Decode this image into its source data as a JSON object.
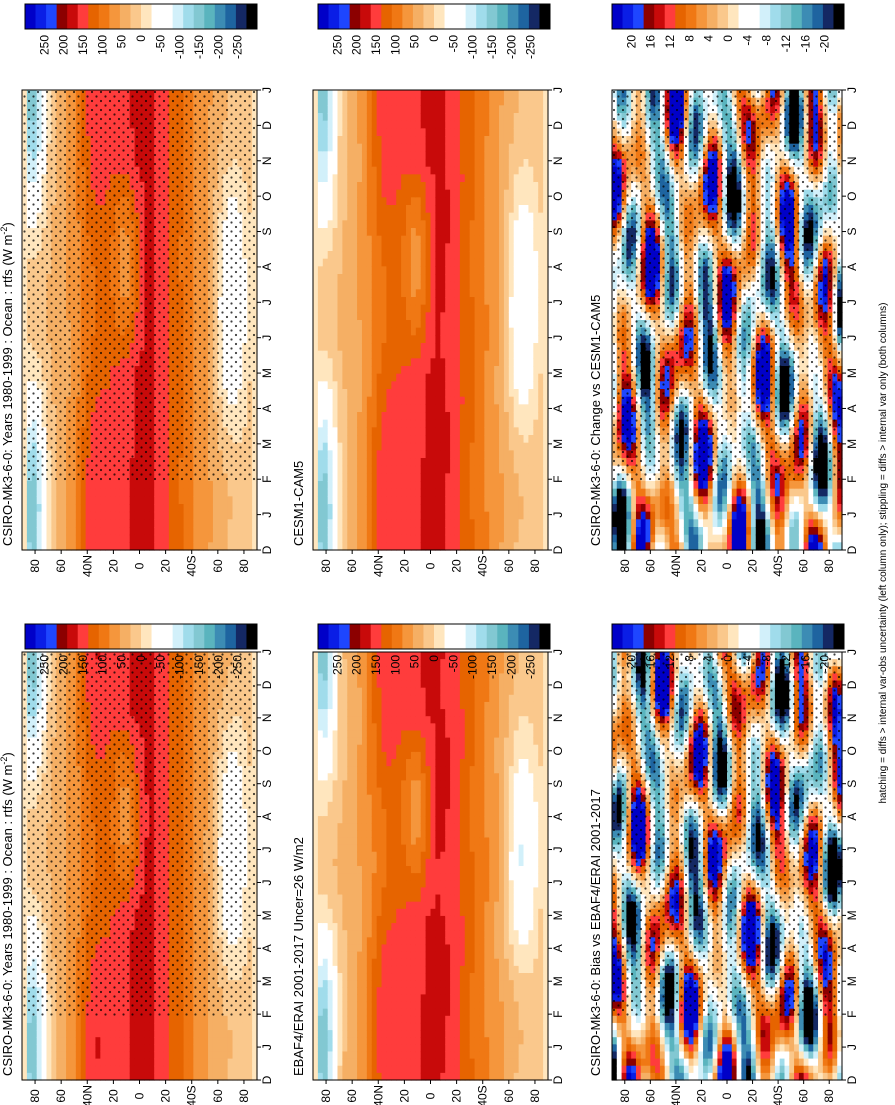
{
  "figure": {
    "footnote": "hatching = diffs > internal var-obs uncertainty (left column only); stippling = diffs > internal var only (both columns)",
    "orientation": "rotated 90 degrees clockwise"
  },
  "chart_data": [
    {
      "type": "heatmap",
      "id": "p11",
      "title": "CSIRO-Mk3-6-0: Years 1980-1999 : Ocean : rtfs (W m",
      "title_sup": "-2",
      "title_close": ")",
      "x_ticks": [
        "D",
        "J",
        "F",
        "M",
        "A",
        "M",
        "J",
        "J",
        "A",
        "S",
        "O",
        "N",
        "D",
        "J"
      ],
      "y_ticks": [
        "80",
        "60",
        "40N",
        "20",
        "0",
        "20",
        "40S",
        "60",
        "80"
      ],
      "stipple": true,
      "colorbar_labels": [
        "250",
        "200",
        "150",
        "100",
        "50",
        "0",
        "-50",
        "-100",
        "-150",
        "-200",
        "-250"
      ],
      "field": "absolute",
      "range": [
        -250,
        250
      ]
    },
    {
      "type": "heatmap",
      "id": "p12",
      "title": "CSIRO-Mk3-6-0: Years 1980-1999 : Ocean : rtfs (W m",
      "title_sup": "-2",
      "title_close": ")",
      "x_ticks": [
        "D",
        "J",
        "F",
        "M",
        "A",
        "M",
        "J",
        "J",
        "A",
        "S",
        "O",
        "N",
        "D",
        "J"
      ],
      "y_ticks": [
        "80",
        "60",
        "40N",
        "20",
        "0",
        "20",
        "40S",
        "60",
        "80"
      ],
      "stipple": true,
      "colorbar_labels": [
        "250",
        "200",
        "150",
        "100",
        "50",
        "0",
        "-50",
        "-100",
        "-150",
        "-200",
        "-250"
      ],
      "field": "absolute",
      "range": [
        -250,
        250
      ]
    },
    {
      "type": "heatmap",
      "id": "p21",
      "title": "EBAF4/ERAI 2001-2017 Uncer=26 W/m2",
      "title_sup": "",
      "title_close": "",
      "x_ticks": [
        "D",
        "J",
        "F",
        "M",
        "A",
        "M",
        "J",
        "J",
        "A",
        "S",
        "O",
        "N",
        "D",
        "J"
      ],
      "y_ticks": [
        "80",
        "60",
        "40N",
        "20",
        "0",
        "20",
        "40S",
        "60",
        "80"
      ],
      "stipple": false,
      "colorbar_labels": [
        "250",
        "200",
        "150",
        "100",
        "50",
        "0",
        "-50",
        "-100",
        "-150",
        "-200",
        "-250"
      ],
      "field": "absolute",
      "range": [
        -250,
        250
      ]
    },
    {
      "type": "heatmap",
      "id": "p22",
      "title": "CESM1-CAM5",
      "title_sup": "",
      "title_close": "",
      "x_ticks": [
        "D",
        "J",
        "F",
        "M",
        "A",
        "M",
        "J",
        "J",
        "A",
        "S",
        "O",
        "N",
        "D",
        "J"
      ],
      "y_ticks": [
        "80",
        "60",
        "40N",
        "20",
        "0",
        "20",
        "40S",
        "60",
        "80"
      ],
      "stipple": false,
      "colorbar_labels": [
        "250",
        "200",
        "150",
        "100",
        "50",
        "0",
        "-50",
        "-100",
        "-150",
        "-200",
        "-250"
      ],
      "field": "absolute",
      "range": [
        -250,
        250
      ]
    },
    {
      "type": "heatmap",
      "id": "p31",
      "title": "CSIRO-Mk3-6-0: Bias vs EBAF4/ERAI 2001-2017",
      "title_sup": "",
      "title_close": "",
      "x_ticks": [
        "D",
        "J",
        "F",
        "M",
        "A",
        "M",
        "J",
        "J",
        "A",
        "S",
        "O",
        "N",
        "D",
        "J"
      ],
      "y_ticks": [
        "80",
        "60",
        "40N",
        "20",
        "0",
        "20",
        "40S",
        "60",
        "80"
      ],
      "stipple": true,
      "colorbar_labels": [
        "20",
        "16",
        "12",
        "8",
        "4",
        "0",
        "-4",
        "-8",
        "-12",
        "-16",
        "-20"
      ],
      "field": "difference",
      "range": [
        -20,
        20
      ]
    },
    {
      "type": "heatmap",
      "id": "p32",
      "title": "CSIRO-Mk3-6-0: Change vs CESM1-CAM5",
      "title_sup": "",
      "title_close": "",
      "x_ticks": [
        "D",
        "J",
        "F",
        "M",
        "A",
        "M",
        "J",
        "J",
        "A",
        "S",
        "O",
        "N",
        "D",
        "J"
      ],
      "y_ticks": [
        "80",
        "60",
        "40N",
        "20",
        "0",
        "20",
        "40S",
        "60",
        "80"
      ],
      "stipple": true,
      "colorbar_labels": [
        "20",
        "16",
        "12",
        "8",
        "4",
        "0",
        "-4",
        "-8",
        "-12",
        "-16",
        "-20"
      ],
      "field": "difference",
      "range": [
        -20,
        20
      ]
    }
  ],
  "colors": {
    "absolute": [
      "#0000c8",
      "#0a1ee6",
      "#1e46ff",
      "#8c0000",
      "#c80a0a",
      "#ff3c3c",
      "#e66400",
      "#f07814",
      "#f5963c",
      "#f5af64",
      "#fac88c",
      "#ffe6be",
      "#ffffff",
      "#ffffff",
      "#d2f0fa",
      "#a0dceb",
      "#82c8d2",
      "#5ab4be",
      "#3c8cb4",
      "#1e64a0",
      "#142864",
      "#000000"
    ],
    "difference": [
      "#0000c8",
      "#0a1ee6",
      "#1e46ff",
      "#8c0000",
      "#c80a0a",
      "#ff3c3c",
      "#e66400",
      "#f07814",
      "#f5963c",
      "#f5af64",
      "#fac88c",
      "#ffe6be",
      "#ffffff",
      "#ffffff",
      "#d2f0fa",
      "#a0dceb",
      "#82c8d2",
      "#5ab4be",
      "#3c8cb4",
      "#1e64a0",
      "#142864",
      "#000000"
    ]
  }
}
